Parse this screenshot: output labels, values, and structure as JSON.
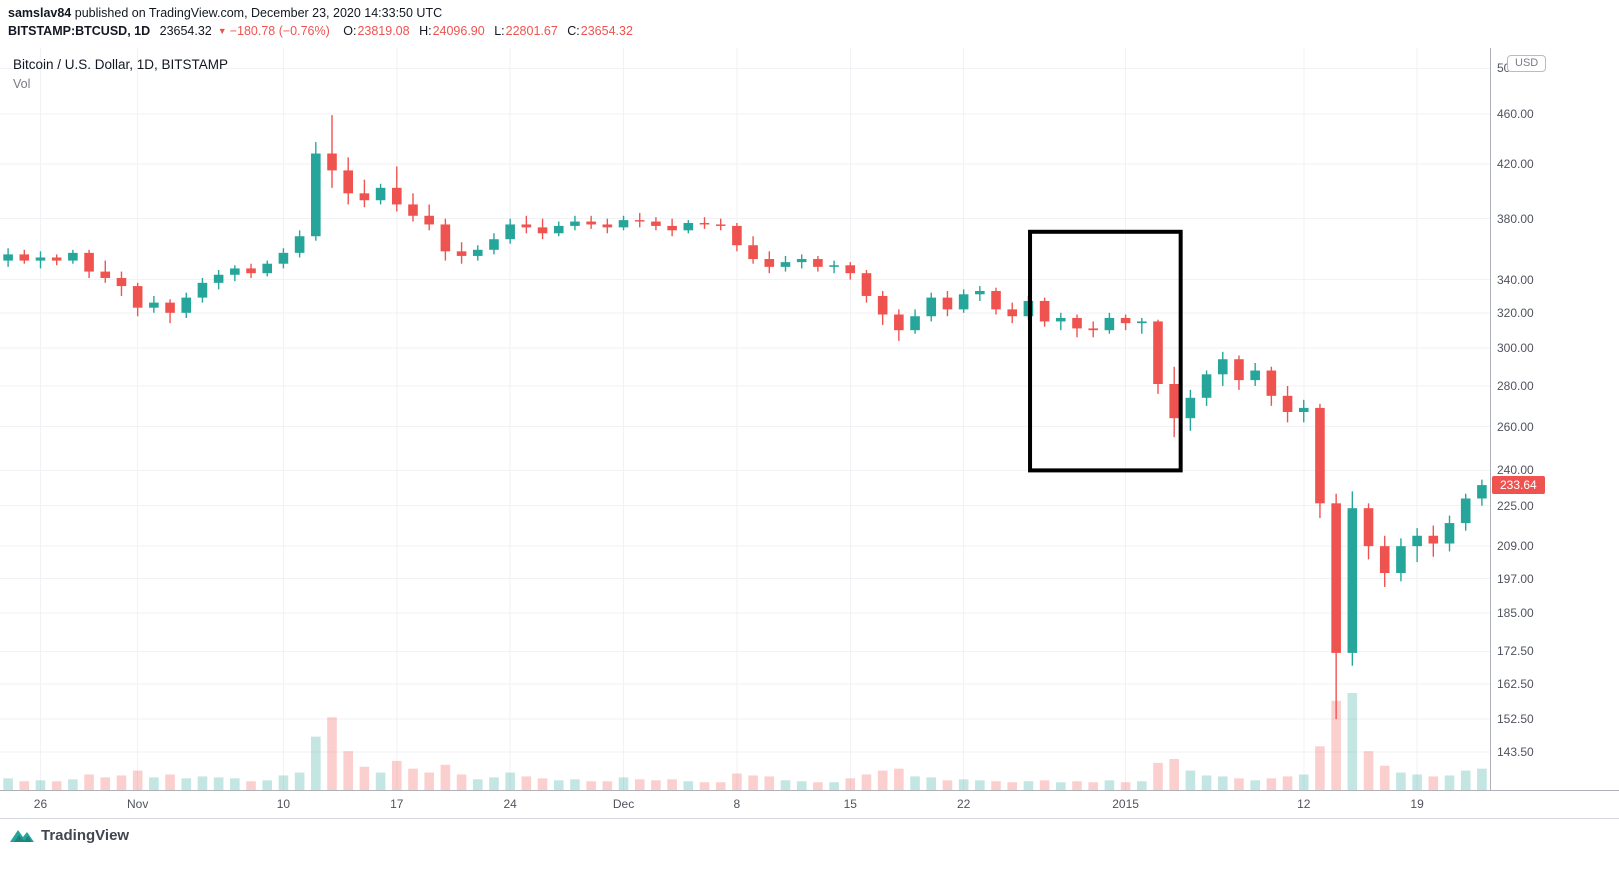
{
  "meta": {
    "username": "samslav84",
    "published_text": "published on TradingView.com, December 23, 2020 14:33:50 UTC"
  },
  "quote": {
    "symbol": "BITSTAMP:BTCUSD, 1D",
    "last": "23654.32",
    "direction_icon": "▼",
    "change": "−180.78 (−0.76%)",
    "open_label": "O:",
    "open": "23819.08",
    "high_label": "H:",
    "high": "24096.90",
    "low_label": "L:",
    "low": "22801.67",
    "close_label": "C:",
    "close": "23654.32"
  },
  "chart": {
    "title": "Bitcoin / U.S. Dollar, 1D, BITSTAMP",
    "vol_label": "Vol",
    "currency_button": "USD",
    "price_badge": "233.64",
    "footer_logo": "TradingView"
  },
  "colors": {
    "up": "#26a69a",
    "down": "#ef5350",
    "volume_up": "rgba(38,166,154,0.28)",
    "volume_down": "rgba(239,83,80,0.28)",
    "grid": "#f0f2f5",
    "axis_text": "#50535e",
    "badge_bg": "#ef5350",
    "header_red": "#ef5350",
    "annotation_black": "#000000"
  },
  "chart_data": {
    "type": "candlestick",
    "title": "Bitcoin / U.S. Dollar, 1D, BITSTAMP",
    "exchange": "BITSTAMP",
    "interval": "1D",
    "scale": "log",
    "legend": [
      "Vol"
    ],
    "last_price": 233.64,
    "price_axis_ticks": [
      {
        "v": 500.0,
        "label": "500.00"
      },
      {
        "v": 460.0,
        "label": "460.00"
      },
      {
        "v": 420.0,
        "label": "420.00"
      },
      {
        "v": 380.0,
        "label": "380.00"
      },
      {
        "v": 340.0,
        "label": "340.00"
      },
      {
        "v": 320.0,
        "label": "320.00"
      },
      {
        "v": 300.0,
        "label": "300.00"
      },
      {
        "v": 280.0,
        "label": "280.00"
      },
      {
        "v": 260.0,
        "label": "260.00"
      },
      {
        "v": 240.0,
        "label": "240.00"
      },
      {
        "v": 225.0,
        "label": "225.00"
      },
      {
        "v": 209.0,
        "label": "209.00"
      },
      {
        "v": 197.0,
        "label": "197.00"
      },
      {
        "v": 185.0,
        "label": "185.00"
      },
      {
        "v": 172.5,
        "label": "172.50"
      },
      {
        "v": 162.5,
        "label": "162.50"
      },
      {
        "v": 152.5,
        "label": "152.50"
      },
      {
        "v": 143.5,
        "label": "143.50"
      }
    ],
    "time_axis_ticks": [
      {
        "index": 2,
        "label": "26"
      },
      {
        "index": 8,
        "label": "Nov"
      },
      {
        "index": 17,
        "label": "10"
      },
      {
        "index": 24,
        "label": "17"
      },
      {
        "index": 31,
        "label": "24"
      },
      {
        "index": 38,
        "label": "Dec"
      },
      {
        "index": 45,
        "label": "8"
      },
      {
        "index": 52,
        "label": "15"
      },
      {
        "index": 59,
        "label": "22"
      },
      {
        "index": 69,
        "label": "2015"
      },
      {
        "index": 80,
        "label": "12"
      },
      {
        "index": 87,
        "label": "19"
      }
    ],
    "candle_fields": [
      "date",
      "open",
      "high",
      "low",
      "close",
      "volume_rel"
    ],
    "candles": [
      [
        "Oct 24",
        352,
        360,
        348,
        356,
        12
      ],
      [
        "Oct 25",
        356,
        359,
        350,
        352,
        9
      ],
      [
        "Oct 26",
        352,
        358,
        347,
        354,
        10
      ],
      [
        "Oct 27",
        354,
        356,
        349,
        352,
        9
      ],
      [
        "Oct 28",
        352,
        359,
        350,
        357,
        11
      ],
      [
        "Oct 29",
        357,
        359,
        341,
        345,
        16
      ],
      [
        "Oct 30",
        345,
        352,
        338,
        341,
        13
      ],
      [
        "Oct 31",
        341,
        345,
        330,
        336,
        15
      ],
      [
        "Nov 1",
        336,
        338,
        318,
        323,
        20
      ],
      [
        "Nov 2",
        323,
        330,
        320,
        326,
        13
      ],
      [
        "Nov 3",
        326,
        328,
        314,
        320,
        16
      ],
      [
        "Nov 4",
        320,
        332,
        317,
        329,
        12
      ],
      [
        "Nov 5",
        329,
        341,
        326,
        338,
        14
      ],
      [
        "Nov 6",
        338,
        346,
        334,
        343,
        13
      ],
      [
        "Nov 7",
        343,
        349,
        339,
        347,
        12
      ],
      [
        "Nov 8",
        347,
        350,
        341,
        344,
        9
      ],
      [
        "Nov 9",
        344,
        352,
        342,
        350,
        10
      ],
      [
        "Nov 10",
        350,
        360,
        347,
        357,
        15
      ],
      [
        "Nov 11",
        357,
        372,
        354,
        368,
        18
      ],
      [
        "Nov 12",
        368,
        437,
        365,
        428,
        55
      ],
      [
        "Nov 13",
        428,
        459,
        402,
        415,
        75
      ],
      [
        "Nov 14",
        415,
        425,
        390,
        398,
        40
      ],
      [
        "Nov 15",
        398,
        408,
        388,
        393,
        24
      ],
      [
        "Nov 16",
        393,
        405,
        390,
        402,
        18
      ],
      [
        "Nov 17",
        402,
        418,
        385,
        390,
        30
      ],
      [
        "Nov 18",
        390,
        398,
        378,
        382,
        22
      ],
      [
        "Nov 19",
        382,
        390,
        372,
        376,
        18
      ],
      [
        "Nov 20",
        376,
        380,
        352,
        358,
        26
      ],
      [
        "Nov 21",
        358,
        364,
        350,
        355,
        16
      ],
      [
        "Nov 22",
        355,
        362,
        352,
        359,
        11
      ],
      [
        "Nov 23",
        359,
        370,
        356,
        366,
        13
      ],
      [
        "Nov 24",
        366,
        380,
        363,
        376,
        18
      ],
      [
        "Nov 25",
        376,
        382,
        370,
        374,
        14
      ],
      [
        "Nov 26",
        374,
        380,
        366,
        370,
        12
      ],
      [
        "Nov 27",
        370,
        378,
        368,
        375,
        10
      ],
      [
        "Nov 28",
        375,
        382,
        372,
        378,
        11
      ],
      [
        "Nov 29",
        378,
        382,
        373,
        376,
        9
      ],
      [
        "Nov 30",
        376,
        380,
        370,
        374,
        9
      ],
      [
        "Dec 1",
        374,
        382,
        372,
        379,
        13
      ],
      [
        "Dec 2",
        379,
        384,
        374,
        378,
        11
      ],
      [
        "Dec 3",
        378,
        381,
        372,
        375,
        10
      ],
      [
        "Dec 4",
        375,
        380,
        368,
        372,
        11
      ],
      [
        "Dec 5",
        372,
        379,
        370,
        377,
        9
      ],
      [
        "Dec 6",
        377,
        381,
        373,
        376,
        8
      ],
      [
        "Dec 7",
        376,
        380,
        372,
        375,
        8
      ],
      [
        "Dec 8",
        375,
        377,
        358,
        362,
        17
      ],
      [
        "Dec 9",
        362,
        368,
        350,
        353,
        15
      ],
      [
        "Dec 10",
        353,
        358,
        344,
        348,
        14
      ],
      [
        "Dec 11",
        348,
        355,
        345,
        351,
        10
      ],
      [
        "Dec 12",
        351,
        356,
        347,
        353,
        9
      ],
      [
        "Dec 13",
        353,
        355,
        345,
        348,
        8
      ],
      [
        "Dec 14",
        348,
        352,
        344,
        349,
        8
      ],
      [
        "Dec 15",
        349,
        351,
        340,
        344,
        12
      ],
      [
        "Dec 16",
        344,
        346,
        326,
        330,
        16
      ],
      [
        "Dec 17",
        330,
        333,
        313,
        319,
        20
      ],
      [
        "Dec 18",
        319,
        322,
        304,
        310,
        22
      ],
      [
        "Dec 19",
        310,
        322,
        308,
        318,
        14
      ],
      [
        "Dec 20",
        318,
        332,
        315,
        329,
        13
      ],
      [
        "Dec 21",
        329,
        333,
        318,
        322,
        10
      ],
      [
        "Dec 22",
        322,
        334,
        320,
        331,
        11
      ],
      [
        "Dec 23",
        331,
        336,
        327,
        333,
        10
      ],
      [
        "Dec 24",
        333,
        335,
        319,
        322,
        9
      ],
      [
        "Dec 25",
        322,
        326,
        314,
        318,
        8
      ],
      [
        "Dec 26",
        318,
        330,
        316,
        327,
        9
      ],
      [
        "Dec 27",
        327,
        329,
        312,
        315,
        10
      ],
      [
        "Dec 28",
        315,
        320,
        310,
        317,
        8
      ],
      [
        "Dec 29",
        317,
        319,
        306,
        311,
        9
      ],
      [
        "Dec 30",
        311,
        315,
        306,
        310,
        8
      ],
      [
        "Dec 31",
        310,
        320,
        308,
        317,
        10
      ],
      [
        "Jan 1",
        317,
        319,
        310,
        314,
        8
      ],
      [
        "Jan 2",
        314,
        317,
        308,
        315,
        9
      ],
      [
        "Jan 3",
        315,
        316,
        276,
        281,
        28
      ],
      [
        "Jan 4",
        281,
        290,
        255,
        264,
        32
      ],
      [
        "Jan 5",
        264,
        278,
        258,
        274,
        20
      ],
      [
        "Jan 6",
        274,
        288,
        270,
        286,
        15
      ],
      [
        "Jan 7",
        286,
        298,
        280,
        294,
        14
      ],
      [
        "Jan 8",
        294,
        296,
        278,
        283,
        12
      ],
      [
        "Jan 9",
        283,
        292,
        280,
        288,
        10
      ],
      [
        "Jan 10",
        288,
        290,
        270,
        275,
        12
      ],
      [
        "Jan 11",
        275,
        280,
        262,
        267,
        14
      ],
      [
        "Jan 12",
        267,
        273,
        262,
        269,
        16
      ],
      [
        "Jan 13",
        269,
        271,
        220,
        226,
        45
      ],
      [
        "Jan 14",
        226,
        230,
        152.4,
        172,
        92
      ],
      [
        "Jan 15",
        172,
        231,
        168,
        224,
        100
      ],
      [
        "Jan 16",
        224,
        226,
        204,
        209,
        40
      ],
      [
        "Jan 17",
        209,
        213,
        194,
        199,
        25
      ],
      [
        "Jan 18",
        199,
        212,
        196,
        209,
        18
      ],
      [
        "Jan 19",
        209,
        216,
        203,
        213,
        16
      ],
      [
        "Jan 20",
        213,
        217,
        205,
        210,
        14
      ],
      [
        "Jan 21",
        210,
        221,
        207,
        218,
        15
      ],
      [
        "Jan 22",
        218,
        230,
        215,
        228,
        20
      ],
      [
        "Jan 23",
        228,
        236,
        225,
        233.64,
        22
      ]
    ],
    "annotations": [
      {
        "type": "rectangle",
        "start_index": 63.6,
        "end_index": 72.9,
        "price_top": 371,
        "price_bottom": 240,
        "stroke": "#000000",
        "stroke_width": 4
      }
    ]
  }
}
